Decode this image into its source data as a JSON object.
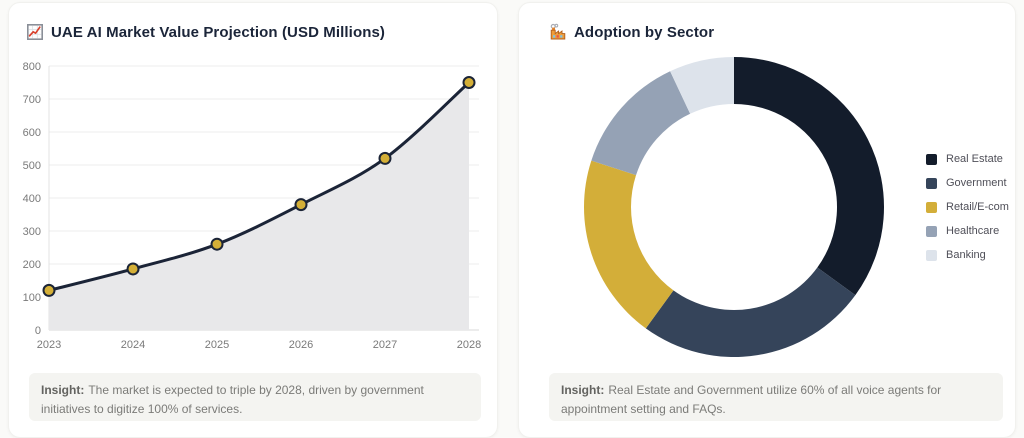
{
  "cards": {
    "market": {
      "title": "UAE AI Market Value Projection (USD Millions)",
      "title_icon": "chart-increasing-icon",
      "insight_label": "Insight:",
      "insight_text": "The market is expected to triple by 2028, driven by government initiatives to digitize 100% of services."
    },
    "sector": {
      "title": "Adoption by Sector",
      "title_icon": "factory-icon",
      "insight_label": "Insight:",
      "insight_text": "Real Estate and Government utilize 60% of all voice agents for appointment setting and FAQs."
    }
  },
  "chart_data": [
    {
      "type": "area",
      "title": "UAE AI Market Value Projection (USD Millions)",
      "x": [
        "2023",
        "2024",
        "2025",
        "2026",
        "2027",
        "2028"
      ],
      "values": [
        120,
        185,
        260,
        380,
        520,
        750
      ],
      "ylim": [
        0,
        800
      ],
      "ytick_step": 100,
      "grid": true,
      "legend": false,
      "line_color": "#1b2437",
      "marker_color": "#d4af37",
      "fill_color": "#e8e8ea"
    },
    {
      "type": "pie",
      "donut": true,
      "title": "Adoption by Sector",
      "labels": [
        "Real Estate",
        "Government",
        "Retail/E-com",
        "Healthcare",
        "Banking"
      ],
      "values": [
        35,
        25,
        20,
        13,
        7
      ],
      "colors": [
        "#131c2b",
        "#35445a",
        "#d3ae39",
        "#95a2b5",
        "#dde3eb"
      ],
      "legend_position": "right"
    }
  ]
}
